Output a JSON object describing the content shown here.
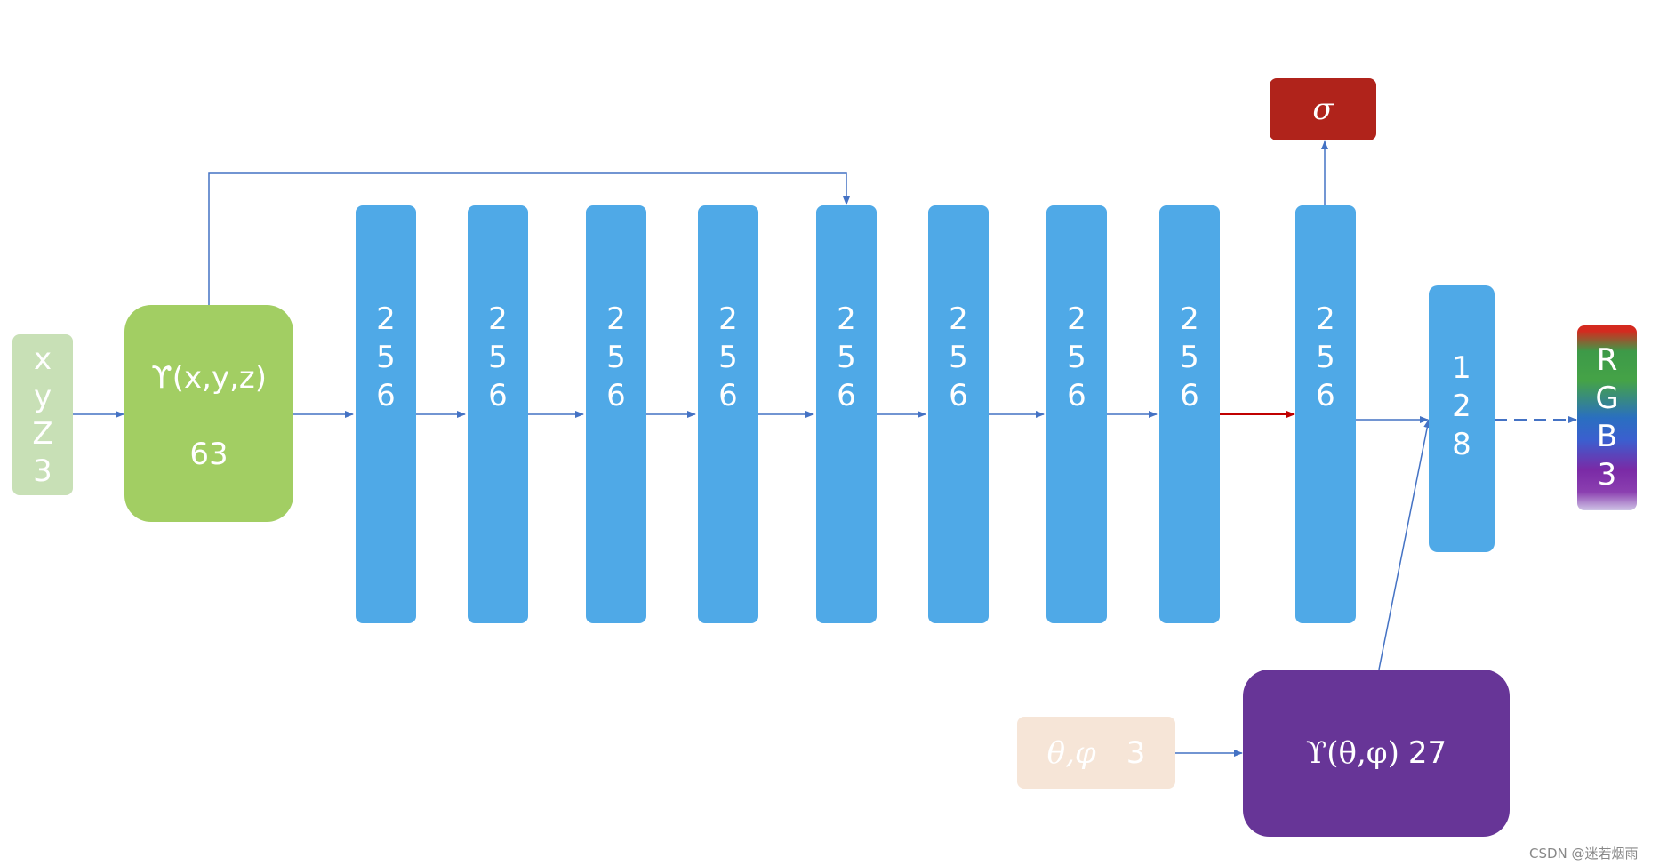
{
  "input_xyz": {
    "lines": [
      "x",
      "y",
      "Z",
      "3"
    ]
  },
  "encoding_xyz": {
    "label": "ϒ(x,y,z)",
    "dim": "63"
  },
  "layers": [
    {
      "digits": [
        "2",
        "5",
        "6"
      ]
    },
    {
      "digits": [
        "2",
        "5",
        "6"
      ]
    },
    {
      "digits": [
        "2",
        "5",
        "6"
      ]
    },
    {
      "digits": [
        "2",
        "5",
        "6"
      ]
    },
    {
      "digits": [
        "2",
        "5",
        "6"
      ]
    },
    {
      "digits": [
        "2",
        "5",
        "6"
      ]
    },
    {
      "digits": [
        "2",
        "5",
        "6"
      ]
    },
    {
      "digits": [
        "2",
        "5",
        "6"
      ]
    },
    {
      "digits": [
        "2",
        "5",
        "6"
      ]
    }
  ],
  "layer_128": {
    "digits": [
      "1",
      "2",
      "8"
    ]
  },
  "sigma": {
    "label": "σ"
  },
  "rgb": {
    "lines": [
      "R",
      "G",
      "B",
      "3"
    ]
  },
  "input_view": {
    "symbol": "θ,φ",
    "dim": "3"
  },
  "encoding_view": {
    "symbol": "ϒ(θ,φ)",
    "dim": "27"
  },
  "watermark": "CSDN @迷若烟雨",
  "colors": {
    "arrow": "#4472c4",
    "arrow_highlight": "#c00000"
  }
}
